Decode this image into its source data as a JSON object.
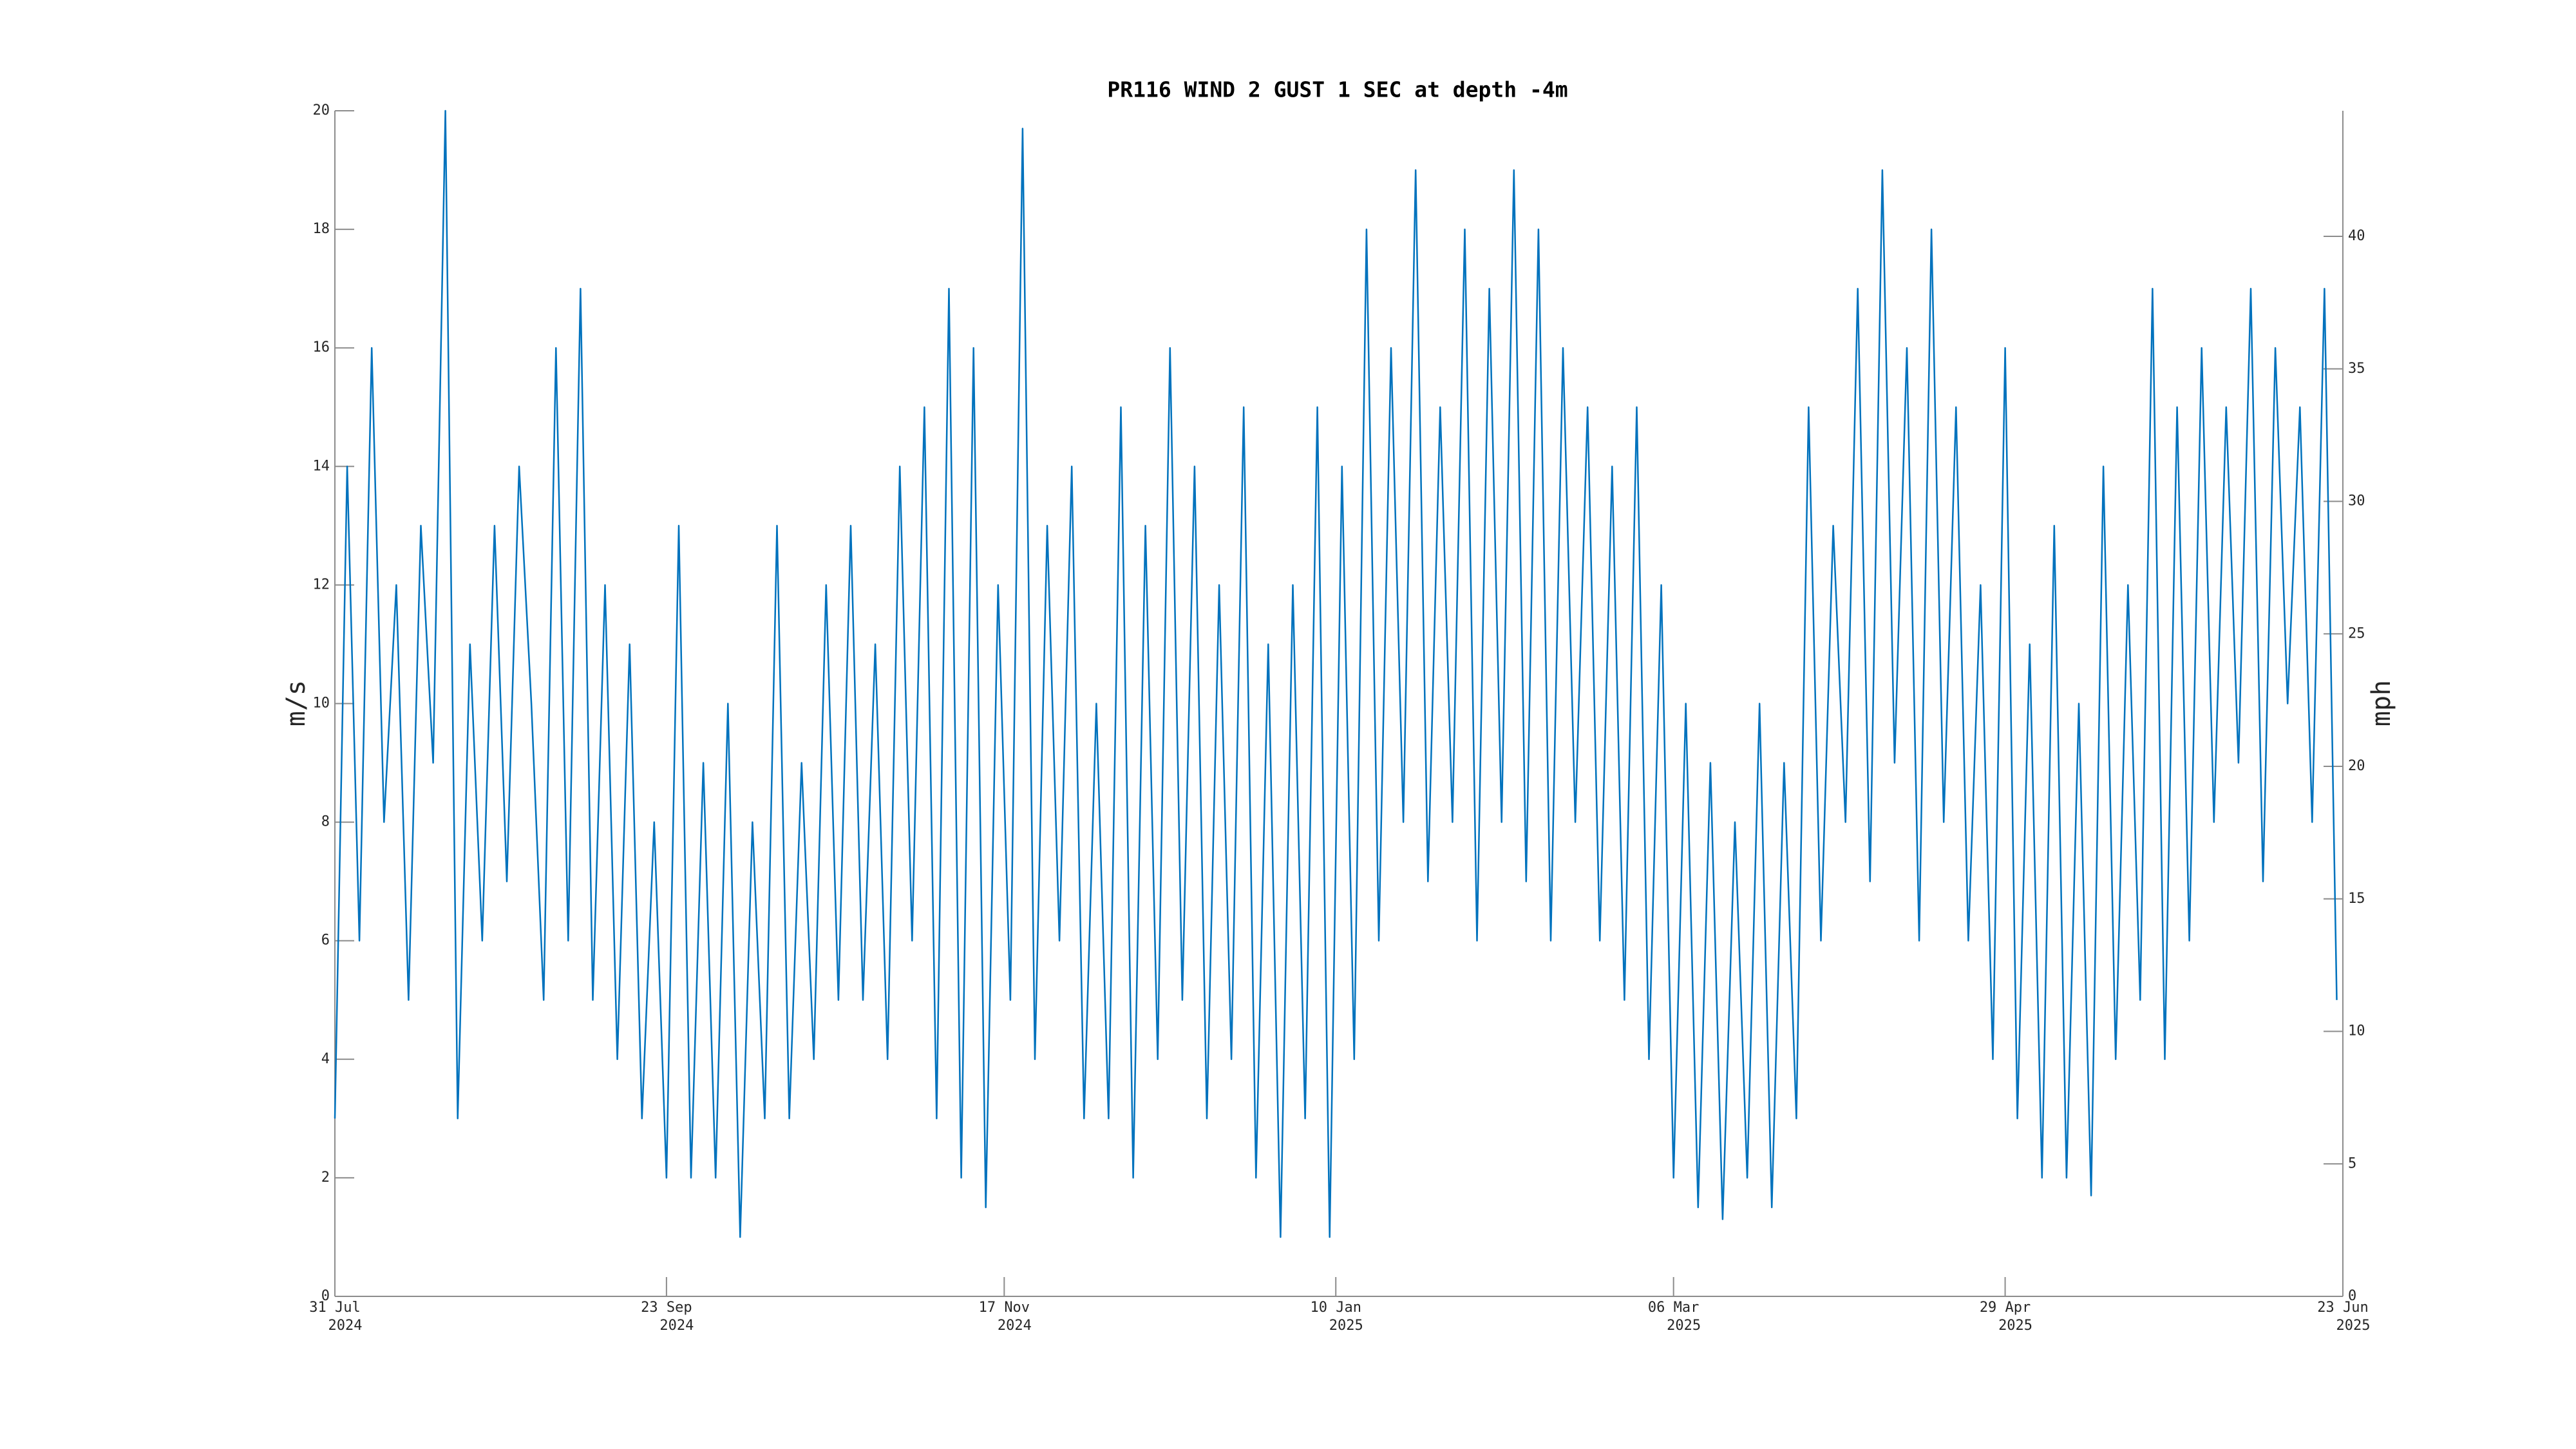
{
  "chart_data": {
    "type": "line",
    "title": "PR116 WIND 2 GUST 1 SEC at depth -4m",
    "y_label": "m/s",
    "y2_label": "mph",
    "x": [
      "2024-07-31",
      "2024-08-02",
      "2024-08-04",
      "2024-08-06",
      "2024-08-08",
      "2024-08-10",
      "2024-08-12",
      "2024-08-14",
      "2024-08-16",
      "2024-08-18",
      "2024-08-20",
      "2024-08-22",
      "2024-08-24",
      "2024-08-26",
      "2024-08-28",
      "2024-08-30",
      "2024-09-01",
      "2024-09-03",
      "2024-09-05",
      "2024-09-07",
      "2024-09-09",
      "2024-09-11",
      "2024-09-13",
      "2024-09-15",
      "2024-09-17",
      "2024-09-19",
      "2024-09-21",
      "2024-09-23",
      "2024-09-25",
      "2024-09-27",
      "2024-09-29",
      "2024-10-01",
      "2024-10-03",
      "2024-10-05",
      "2024-10-07",
      "2024-10-09",
      "2024-10-11",
      "2024-10-13",
      "2024-10-15",
      "2024-10-17",
      "2024-10-19",
      "2024-10-21",
      "2024-10-23",
      "2024-10-25",
      "2024-10-27",
      "2024-10-29",
      "2024-10-31",
      "2024-11-02",
      "2024-11-04",
      "2024-11-06",
      "2024-11-08",
      "2024-11-10",
      "2024-11-12",
      "2024-11-14",
      "2024-11-16",
      "2024-11-18",
      "2024-11-20",
      "2024-11-22",
      "2024-11-24",
      "2024-11-26",
      "2024-11-28",
      "2024-11-30",
      "2024-12-02",
      "2024-12-04",
      "2024-12-06",
      "2024-12-08",
      "2024-12-10",
      "2024-12-12",
      "2024-12-14",
      "2024-12-16",
      "2024-12-18",
      "2024-12-20",
      "2024-12-22",
      "2024-12-24",
      "2024-12-26",
      "2024-12-28",
      "2024-12-30",
      "2025-01-01",
      "2025-01-03",
      "2025-01-05",
      "2025-01-07",
      "2025-01-09",
      "2025-01-11",
      "2025-01-13",
      "2025-01-15",
      "2025-01-17",
      "2025-01-19",
      "2025-01-21",
      "2025-01-23",
      "2025-01-25",
      "2025-01-27",
      "2025-01-29",
      "2025-01-31",
      "2025-02-02",
      "2025-02-04",
      "2025-02-06",
      "2025-02-08",
      "2025-02-10",
      "2025-02-12",
      "2025-02-14",
      "2025-02-16",
      "2025-02-18",
      "2025-02-20",
      "2025-02-22",
      "2025-02-24",
      "2025-02-26",
      "2025-02-28",
      "2025-03-02",
      "2025-03-04",
      "2025-03-06",
      "2025-03-08",
      "2025-03-10",
      "2025-03-12",
      "2025-03-14",
      "2025-03-16",
      "2025-03-18",
      "2025-03-20",
      "2025-03-22",
      "2025-03-24",
      "2025-03-26",
      "2025-03-28",
      "2025-03-30",
      "2025-04-01",
      "2025-04-03",
      "2025-04-05",
      "2025-04-07",
      "2025-04-09",
      "2025-04-11",
      "2025-04-13",
      "2025-04-15",
      "2025-04-17",
      "2025-04-19",
      "2025-04-21",
      "2025-04-23",
      "2025-04-25",
      "2025-04-27",
      "2025-04-29",
      "2025-05-01",
      "2025-05-03",
      "2025-05-05",
      "2025-05-07",
      "2025-05-09",
      "2025-05-11",
      "2025-05-13",
      "2025-05-15",
      "2025-05-17",
      "2025-05-19",
      "2025-05-21",
      "2025-05-23",
      "2025-05-25",
      "2025-05-27",
      "2025-05-29",
      "2025-05-31",
      "2025-06-02",
      "2025-06-04",
      "2025-06-06",
      "2025-06-08",
      "2025-06-10",
      "2025-06-12",
      "2025-06-14",
      "2025-06-16",
      "2025-06-18",
      "2025-06-20",
      "2025-06-22"
    ],
    "series": [
      {
        "color": "#0072bd",
        "values": [
          3,
          14,
          6,
          16,
          8,
          12,
          5,
          13,
          9,
          20,
          3,
          11,
          6,
          13,
          7,
          14,
          10,
          5,
          16,
          6,
          17,
          5,
          12,
          4,
          11,
          3,
          8,
          2,
          13,
          2,
          9,
          2,
          10,
          1,
          8,
          3,
          13,
          3,
          9,
          4,
          12,
          5,
          13,
          5,
          11,
          4,
          14,
          6,
          15,
          3,
          17,
          2,
          16,
          1.5,
          12,
          5,
          19.7,
          4,
          13,
          6,
          14,
          3,
          10,
          3,
          15,
          2,
          13,
          4,
          16,
          5,
          14,
          3,
          12,
          4,
          15,
          2,
          11,
          1,
          12,
          3,
          15,
          1,
          14,
          4,
          18,
          6,
          16,
          8,
          19,
          7,
          15,
          8,
          18,
          6,
          17,
          8,
          19,
          7,
          18,
          6,
          16,
          8,
          15,
          6,
          14,
          5,
          15,
          4,
          12,
          2,
          10,
          1.5,
          9,
          1.3,
          8,
          2,
          10,
          1.5,
          9,
          3,
          15,
          6,
          13,
          8,
          17,
          7,
          19,
          9,
          16,
          6,
          18,
          8,
          15,
          6,
          12,
          4,
          16,
          3,
          11,
          2,
          13,
          2,
          10,
          1.7,
          14,
          4,
          12,
          5,
          17,
          4,
          15,
          6,
          16,
          8,
          15,
          9,
          17,
          7,
          16,
          10,
          15,
          8,
          17,
          5
        ]
      }
    ],
    "xlim": [
      "2024-07-31",
      "2025-06-23"
    ],
    "xticks": [
      {
        "value": "2024-07-31",
        "label": "31 Jul",
        "year": "2024"
      },
      {
        "value": "2024-09-23",
        "label": "23 Sep",
        "year": "2024"
      },
      {
        "value": "2024-11-17",
        "label": "17 Nov",
        "year": "2024"
      },
      {
        "value": "2025-01-10",
        "label": "10 Jan",
        "year": "2025"
      },
      {
        "value": "2025-03-06",
        "label": "06 Mar",
        "year": "2025"
      },
      {
        "value": "2025-04-29",
        "label": "29 Apr",
        "year": "2025"
      },
      {
        "value": "2025-06-23",
        "label": "23 Jun",
        "year": "2025"
      }
    ],
    "ylim": [
      0,
      20
    ],
    "yticks": [
      0,
      2,
      4,
      6,
      8,
      10,
      12,
      14,
      16,
      18,
      20
    ],
    "y2lim": [
      0,
      44.74
    ],
    "y2ticks": [
      0,
      5,
      10,
      15,
      20,
      25,
      30,
      35,
      40
    ],
    "grid": false
  }
}
